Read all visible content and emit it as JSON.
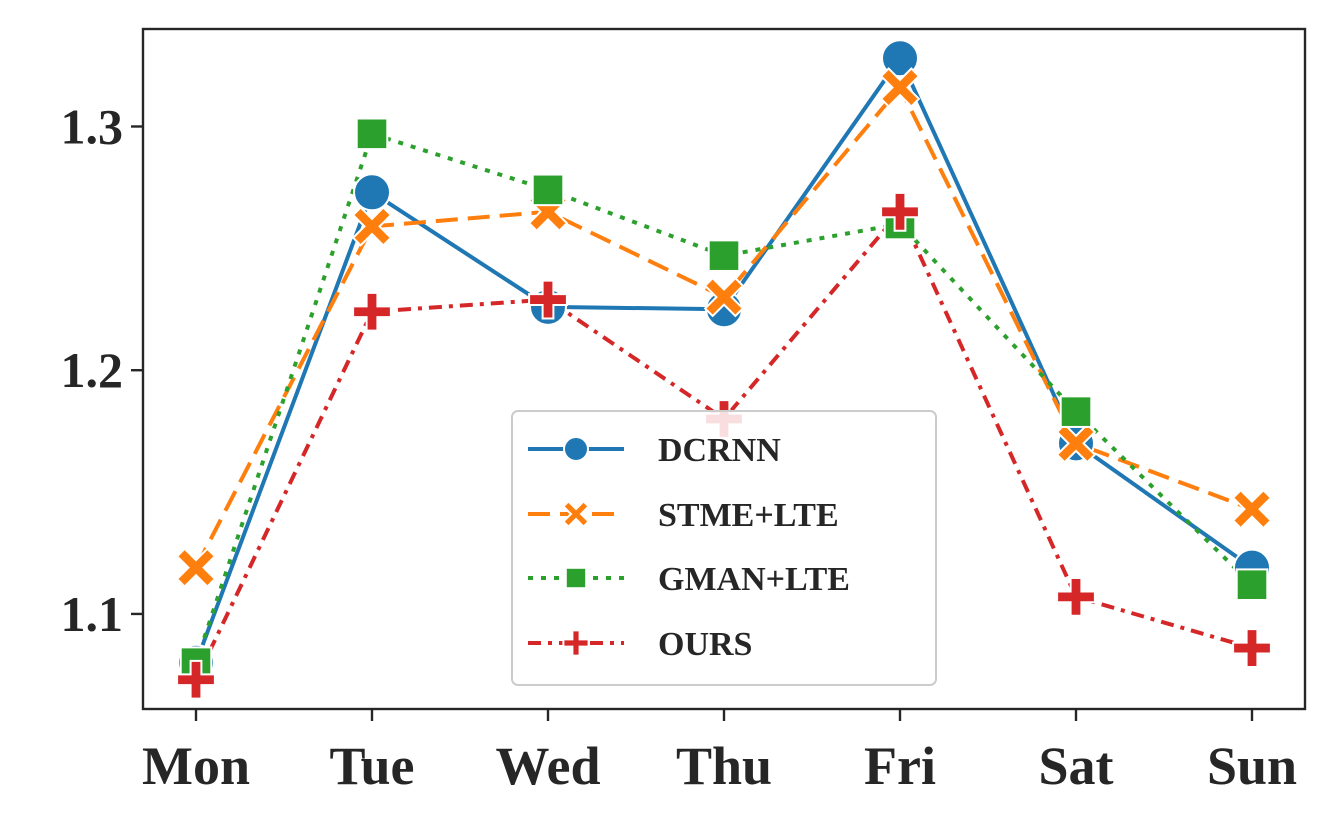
{
  "chart_data": {
    "type": "line",
    "categories": [
      "Mon",
      "Tue",
      "Wed",
      "Thu",
      "Fri",
      "Sat",
      "Sun"
    ],
    "ylim": [
      1.061,
      1.34
    ],
    "yticks": [
      1.1,
      1.2,
      1.3
    ],
    "ytick_labels": [
      "1.1",
      "1.2",
      "1.3"
    ],
    "grid": false,
    "legend_position": "lower-center",
    "series": [
      {
        "name": "DCRNN",
        "color": "#1f77b4",
        "marker": "circle",
        "line_style": "solid",
        "values": [
          1.08,
          1.273,
          1.226,
          1.225,
          1.328,
          1.17,
          1.119
        ]
      },
      {
        "name": "STME+LTE",
        "color": "#ff7f0e",
        "marker": "x",
        "line_style": "dashed",
        "values": [
          1.119,
          1.259,
          1.265,
          1.23,
          1.316,
          1.17,
          1.143
        ]
      },
      {
        "name": "GMAN+LTE",
        "color": "#2ca02c",
        "marker": "square",
        "line_style": "dotted",
        "values": [
          1.08,
          1.297,
          1.274,
          1.247,
          1.26,
          1.183,
          1.112
        ]
      },
      {
        "name": "OURS",
        "color": "#d62728",
        "marker": "plus",
        "line_style": "dashdot",
        "values": [
          1.073,
          1.224,
          1.229,
          1.18,
          1.265,
          1.107,
          1.086
        ]
      }
    ]
  }
}
